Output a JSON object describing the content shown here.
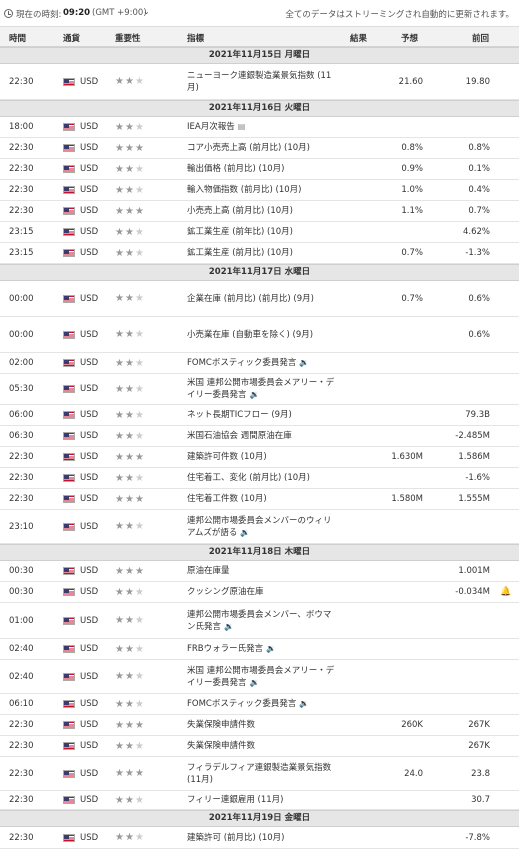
{
  "topbar": {
    "label": "現在の時刻:",
    "time": "09:20",
    "timezone": "(GMT +9:00)",
    "dropdown_icon": "chevron-down-icon",
    "note": "全てのデータはストリーミングされ自動的に更新されます。"
  },
  "columns": {
    "time": "時間",
    "currency": "通貨",
    "importance": "重要性",
    "event": "指標",
    "actual": "結果",
    "forecast": "予想",
    "previous": "前回"
  },
  "colors": {
    "positive": "#1a8a1a",
    "negative": "#c00000",
    "star_on": "#999999",
    "star_off": "#cccccc"
  },
  "days": [
    {
      "title": "2021年11月15日 月曜日",
      "rows": [
        {
          "time": "22:30",
          "cur": "USD",
          "stars": 2,
          "event": "ニューヨーク連銀製造業景気指数 (11月)",
          "forecast": "21.60",
          "previous": "19.80",
          "prev_style": ""
        }
      ]
    },
    {
      "title": "2021年11月16日 火曜日",
      "rows": [
        {
          "time": "18:00",
          "cur": "USD",
          "stars": 2,
          "event": "IEA月次報告",
          "icon": "document-icon",
          "forecast": "",
          "previous": "",
          "prev_style": ""
        },
        {
          "time": "22:30",
          "cur": "USD",
          "stars": 3,
          "event": "コア小売売上高 (前月比) (10月)",
          "forecast": "0.8%",
          "previous": "0.8%",
          "prev_style": ""
        },
        {
          "time": "22:30",
          "cur": "USD",
          "stars": 2,
          "event": "輸出価格 (前月比) (10月)",
          "forecast": "0.9%",
          "previous": "0.1%",
          "prev_style": ""
        },
        {
          "time": "22:30",
          "cur": "USD",
          "stars": 2,
          "event": "輸入物価指数 (前月比) (10月)",
          "forecast": "1.0%",
          "previous": "0.4%",
          "prev_style": ""
        },
        {
          "time": "22:30",
          "cur": "USD",
          "stars": 3,
          "event": "小売売上高 (前月比) (10月)",
          "forecast": "1.1%",
          "previous": "0.7%",
          "prev_style": ""
        },
        {
          "time": "23:15",
          "cur": "USD",
          "stars": 2,
          "event": "鉱工業生産 (前年比) (10月)",
          "forecast": "",
          "previous": "4.62%",
          "prev_style": ""
        },
        {
          "time": "23:15",
          "cur": "USD",
          "stars": 2,
          "event": "鉱工業生産 (前月比) (10月)",
          "forecast": "0.7%",
          "previous": "-1.3%",
          "prev_style": ""
        }
      ]
    },
    {
      "title": "2021年11月17日 水曜日",
      "rows": [
        {
          "time": "00:00",
          "cur": "USD",
          "stars": 2,
          "event": "企業在庫 (前月比) (前月比) (9月)",
          "forecast": "0.7%",
          "previous": "0.6%",
          "prev_style": ""
        },
        {
          "time": "00:00",
          "cur": "USD",
          "stars": 2,
          "event": "小売業在庫 (自動車を除く) (9月)",
          "forecast": "",
          "previous": "0.6%",
          "prev_style": ""
        },
        {
          "time": "02:00",
          "cur": "USD",
          "stars": 2,
          "event": "FOMCボスティック委員発言",
          "icon": "speaker-icon",
          "forecast": "",
          "previous": "",
          "prev_style": ""
        },
        {
          "time": "05:30",
          "cur": "USD",
          "stars": 2,
          "event": "米国 連邦公開市場委員会メアリー・デイリー委員発言",
          "icon": "speaker-icon",
          "forecast": "",
          "previous": "",
          "prev_style": ""
        },
        {
          "time": "06:00",
          "cur": "USD",
          "stars": 2,
          "event": "ネット長期TICフロー (9月)",
          "forecast": "",
          "previous": "79.3B",
          "prev_style": ""
        },
        {
          "time": "06:30",
          "cur": "USD",
          "stars": 2,
          "event": "米国石油協会 週間原油在庫",
          "forecast": "",
          "previous": "-2.485M",
          "prev_style": ""
        },
        {
          "time": "22:30",
          "cur": "USD",
          "stars": 3,
          "event": "建築許可件数 (10月)",
          "forecast": "1.630M",
          "previous": "1.586M",
          "prev_style": ""
        },
        {
          "time": "22:30",
          "cur": "USD",
          "stars": 2,
          "event": "住宅着工、変化 (前月比) (10月)",
          "forecast": "",
          "previous": "-1.6%",
          "prev_style": ""
        },
        {
          "time": "22:30",
          "cur": "USD",
          "stars": 3,
          "event": "住宅着工件数 (10月)",
          "forecast": "1.580M",
          "previous": "1.555M",
          "prev_style": ""
        },
        {
          "time": "23:10",
          "cur": "USD",
          "stars": 2,
          "event": "連邦公開市場委員会メンバーのウィリアムズが語る",
          "icon": "speaker-icon",
          "forecast": "",
          "previous": "",
          "prev_style": ""
        }
      ]
    },
    {
      "title": "2021年11月18日 木曜日",
      "rows": [
        {
          "time": "00:30",
          "cur": "USD",
          "stars": 3,
          "event": "原油在庫量",
          "forecast": "",
          "previous": "1.001M",
          "prev_style": ""
        },
        {
          "time": "00:30",
          "cur": "USD",
          "stars": 2,
          "event": "クッシング原油在庫",
          "forecast": "",
          "previous": "-0.034M",
          "prev_style": "",
          "bell": true
        },
        {
          "time": "01:00",
          "cur": "USD",
          "stars": 2,
          "event": "連邦公開市場委員会メンバー、ボウマン氏発言",
          "icon": "speaker-icon",
          "forecast": "",
          "previous": "",
          "prev_style": ""
        },
        {
          "time": "02:40",
          "cur": "USD",
          "stars": 2,
          "event": "FRBウォラー氏発言",
          "icon": "speaker-icon",
          "forecast": "",
          "previous": "",
          "prev_style": ""
        },
        {
          "time": "02:40",
          "cur": "USD",
          "stars": 2,
          "event": "米国 連邦公開市場委員会メアリー・デイリー委員発言",
          "icon": "speaker-icon",
          "forecast": "",
          "previous": "",
          "prev_style": ""
        },
        {
          "time": "06:10",
          "cur": "USD",
          "stars": 2,
          "event": "FOMCボスティック委員発言",
          "icon": "speaker-icon",
          "forecast": "",
          "previous": "",
          "prev_style": ""
        },
        {
          "time": "22:30",
          "cur": "USD",
          "stars": 3,
          "event": "失業保険申請件数",
          "forecast": "260K",
          "previous": "267K",
          "prev_style": ""
        },
        {
          "time": "22:30",
          "cur": "USD",
          "stars": 2,
          "event": "失業保険申請件数",
          "forecast": "",
          "previous": "267K",
          "prev_style": ""
        },
        {
          "time": "22:30",
          "cur": "USD",
          "stars": 3,
          "event": "フィラデルフィア連銀製造業景気指数 (11月)",
          "forecast": "24.0",
          "previous": "23.8",
          "prev_style": ""
        },
        {
          "time": "22:30",
          "cur": "USD",
          "stars": 2,
          "event": "フィリー連銀雇用 (11月)",
          "forecast": "",
          "previous": "30.7",
          "prev_style": ""
        }
      ]
    },
    {
      "title": "2021年11月19日 金曜日",
      "rows": [
        {
          "time": "22:30",
          "cur": "USD",
          "stars": 2,
          "event": "建築許可 (前月比) (10月)",
          "forecast": "",
          "previous": "-7.8%",
          "prev_style": ""
        }
      ]
    }
  ]
}
